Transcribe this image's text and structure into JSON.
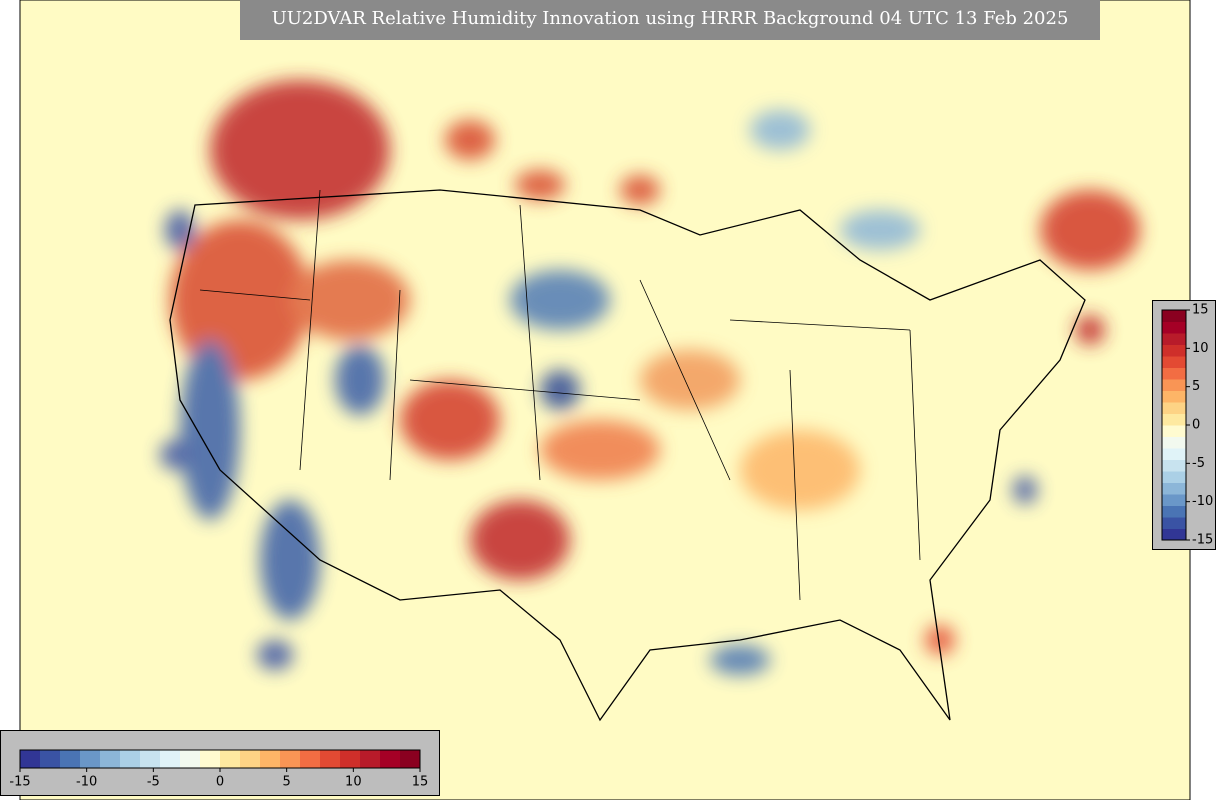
{
  "title": "UU2DVAR Relative Humidity Innovation using HRRR Background 04 UTC 13 Feb 2025",
  "colorbar": {
    "range": [
      -15,
      15
    ],
    "ticks": [
      -15,
      -10,
      -5,
      0,
      5,
      10,
      15
    ],
    "colors": [
      "#313695",
      "#3a53a4",
      "#4a74b4",
      "#6a97c8",
      "#8cb6d8",
      "#abd0e6",
      "#c8e3ef",
      "#e0f3f8",
      "#f2f9ef",
      "#fffbd0",
      "#fee9a0",
      "#fdd385",
      "#fdb567",
      "#f99555",
      "#f26d43",
      "#e34a33",
      "#cf2f2a",
      "#b81b2a",
      "#a50026",
      "#8a0020"
    ]
  }
}
